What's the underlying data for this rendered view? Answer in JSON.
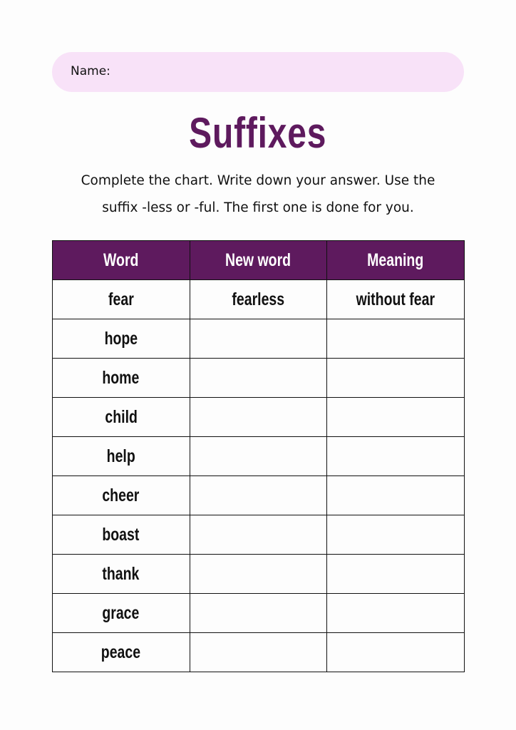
{
  "name_field": {
    "label": "Name:"
  },
  "title": "Suffixes",
  "instructions": [
    "Complete the chart. Write down your answer. Use the",
    "suffix -less or -ful. The first one is done for you."
  ],
  "colors": {
    "accent": "#5e1a5e",
    "name_pill": "#f8e2f8"
  },
  "table": {
    "headers": [
      "Word",
      "New word",
      "Meaning"
    ],
    "rows": [
      [
        "fear",
        "fearless",
        "without fear"
      ],
      [
        "hope",
        "",
        ""
      ],
      [
        "home",
        "",
        ""
      ],
      [
        "child",
        "",
        ""
      ],
      [
        "help",
        "",
        ""
      ],
      [
        "cheer",
        "",
        ""
      ],
      [
        "boast",
        "",
        ""
      ],
      [
        "thank",
        "",
        ""
      ],
      [
        "grace",
        "",
        ""
      ],
      [
        "peace",
        "",
        ""
      ]
    ]
  }
}
